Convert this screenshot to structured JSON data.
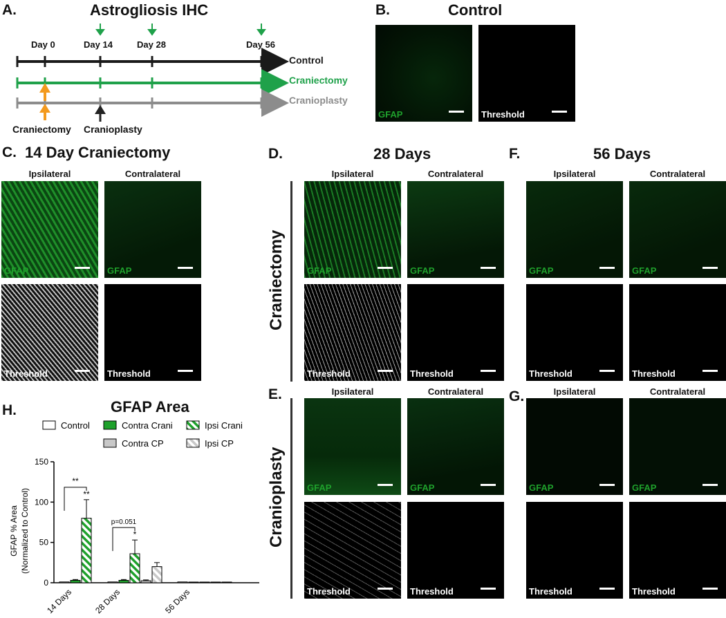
{
  "panels": {
    "a": {
      "letter": "A.",
      "title": "Astrogliosis IHC"
    },
    "b": {
      "letter": "B.",
      "title": "Control"
    },
    "c": {
      "letter": "C.",
      "title": "14 Day Craniectomy"
    },
    "d": {
      "letter": "D.",
      "title": "28 Days"
    },
    "e": {
      "letter": "E."
    },
    "f": {
      "letter": "F.",
      "title": "56 Days"
    },
    "g": {
      "letter": "G."
    },
    "h": {
      "letter": "H.",
      "title": "GFAP Area"
    }
  },
  "timeline": {
    "days": [
      "Day 0",
      "Day 14",
      "Day 28",
      "Day 56"
    ],
    "lines": [
      {
        "label": "Control",
        "color": "#1a1a1a"
      },
      {
        "label": "Craniectomy",
        "color": "#1fa14a"
      },
      {
        "label": "Cranioplasty",
        "color": "#8c8c8c"
      }
    ],
    "events": [
      "Craniectomy",
      "Cranioplasty"
    ],
    "colors": {
      "craniectomy_arrow": "#f39a1e",
      "cranioplasty_arrow": "#222222",
      "timepoint_arrow": "#1fa14a"
    }
  },
  "labels": {
    "ipsilateral": "Ipsilateral",
    "contralateral": "Contralateral",
    "gfap": "GFAP",
    "threshold": "Threshold",
    "craniectomy": "Craniectomy",
    "cranioplasty": "Cranioplasty"
  },
  "chart_data": {
    "type": "bar",
    "title": "GFAP Area",
    "ylabel_line1": "GFAP % Area",
    "ylabel_line2": "(Normalized to Control)",
    "ylim": [
      0,
      150
    ],
    "yticks": [
      "0",
      "50",
      "100",
      "150"
    ],
    "categories": [
      "14 Days",
      "28 Days",
      "56 Days"
    ],
    "series": [
      {
        "name": "Control",
        "values": [
          1,
          1,
          1
        ],
        "errors": [
          0.5,
          0.5,
          0.5
        ],
        "fill": "#ffffff",
        "hatch": false
      },
      {
        "name": "Contra Crani",
        "values": [
          3,
          3,
          0.5
        ],
        "errors": [
          1,
          1,
          0.3
        ],
        "fill": "#1fa12c",
        "hatch": false
      },
      {
        "name": "Ipsi Crani",
        "values": [
          80,
          36,
          0.5
        ],
        "errors": [
          23,
          17,
          0.3
        ],
        "fill": "#1fa12c",
        "hatch": true
      },
      {
        "name": "Contra CP",
        "values": [
          null,
          2.5,
          0.5
        ],
        "errors": [
          null,
          1,
          0.3
        ],
        "fill": "#c8c8c8",
        "hatch": false
      },
      {
        "name": "Ipsi CP",
        "values": [
          null,
          20,
          0.5
        ],
        "errors": [
          null,
          5,
          0.3
        ],
        "fill": "#c8c8c8",
        "hatch": true
      }
    ],
    "annotations": [
      {
        "text": "**",
        "category": "14 Days",
        "kind": "bracket"
      },
      {
        "text": "**",
        "category": "14 Days",
        "kind": "bar"
      },
      {
        "text": "p=0.051",
        "category": "28 Days",
        "kind": "bracket"
      },
      {
        "text": "*",
        "category": "28 Days",
        "kind": "bar"
      }
    ],
    "legend_placement": "top"
  }
}
